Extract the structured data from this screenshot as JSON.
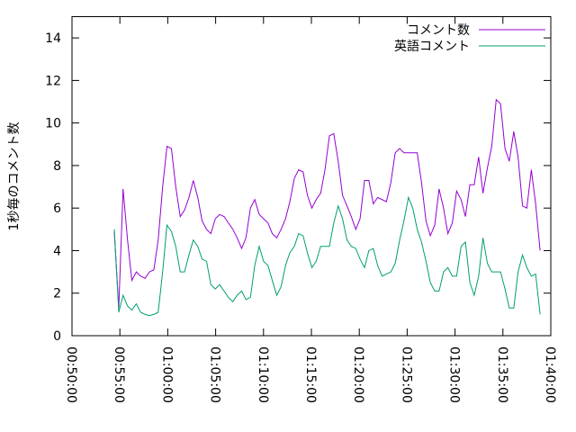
{
  "chart_data": {
    "type": "line",
    "ylabel": "1秒毎のコメント数",
    "x": [
      "00:54:25",
      "00:54:53",
      "00:55:20",
      "00:55:48",
      "00:56:15",
      "00:56:43",
      "00:57:10",
      "00:57:38",
      "00:58:05",
      "00:58:33",
      "00:59:00",
      "00:59:28",
      "00:59:55",
      "01:00:23",
      "01:00:50",
      "01:01:18",
      "01:01:45",
      "01:02:13",
      "01:02:40",
      "01:03:08",
      "01:03:35",
      "01:04:03",
      "01:04:30",
      "01:04:58",
      "01:05:25",
      "01:05:53",
      "01:06:20",
      "01:06:48",
      "01:07:15",
      "01:07:43",
      "01:08:10",
      "01:08:38",
      "01:09:05",
      "01:09:33",
      "01:10:00",
      "01:10:28",
      "01:10:55",
      "01:11:23",
      "01:11:50",
      "01:12:18",
      "01:12:45",
      "01:13:13",
      "01:13:40",
      "01:14:08",
      "01:14:35",
      "01:15:03",
      "01:15:30",
      "01:15:58",
      "01:16:25",
      "01:16:53",
      "01:17:20",
      "01:17:48",
      "01:18:15",
      "01:18:43",
      "01:19:10",
      "01:19:38",
      "01:20:05",
      "01:20:33",
      "01:21:00",
      "01:21:28",
      "01:21:55",
      "01:22:23",
      "01:22:50",
      "01:23:18",
      "01:23:45",
      "01:24:13",
      "01:24:40",
      "01:25:08",
      "01:25:35",
      "01:26:03",
      "01:26:30",
      "01:26:58",
      "01:27:25",
      "01:27:53",
      "01:28:20",
      "01:28:48",
      "01:29:15",
      "01:29:43",
      "01:30:10",
      "01:30:38",
      "01:31:05",
      "01:31:33",
      "01:32:00",
      "01:32:28",
      "01:32:55",
      "01:33:23",
      "01:33:50",
      "01:34:18",
      "01:34:45",
      "01:35:13",
      "01:35:40",
      "01:36:08",
      "01:36:35",
      "01:37:03",
      "01:37:30",
      "01:37:58",
      "01:38:25",
      "01:38:53"
    ],
    "series": [
      {
        "name": "コメント数",
        "color": "#9400d3",
        "values": [
          4.9,
          1.3,
          6.9,
          4.5,
          2.6,
          3.0,
          2.8,
          2.7,
          3.0,
          3.1,
          4.5,
          7.0,
          8.9,
          8.8,
          7.0,
          5.6,
          5.9,
          6.5,
          7.3,
          6.5,
          5.4,
          5.0,
          4.8,
          5.5,
          5.7,
          5.6,
          5.3,
          5.0,
          4.6,
          4.1,
          4.6,
          6.0,
          6.4,
          5.7,
          5.5,
          5.3,
          4.8,
          4.6,
          5.0,
          5.5,
          6.3,
          7.4,
          7.8,
          7.7,
          6.6,
          6.0,
          6.4,
          6.7,
          7.8,
          9.4,
          9.5,
          8.2,
          6.6,
          6.1,
          5.6,
          5.0,
          5.5,
          7.3,
          7.3,
          6.2,
          6.5,
          6.4,
          6.3,
          7.2,
          8.6,
          8.8,
          8.6,
          8.6,
          8.6,
          8.6,
          7.2,
          5.4,
          4.7,
          5.2,
          6.9,
          6.0,
          4.8,
          5.3,
          6.8,
          6.4,
          5.6,
          7.1,
          7.1,
          8.4,
          6.7,
          7.9,
          8.9,
          11.1,
          10.9,
          8.8,
          8.2,
          9.6,
          8.4,
          6.1,
          6.0,
          7.8,
          6.2,
          4.0
        ]
      },
      {
        "name": "英語コメント",
        "color": "#009e73",
        "values": [
          5.0,
          1.1,
          1.9,
          1.4,
          1.2,
          1.5,
          1.1,
          1.0,
          0.95,
          1.0,
          1.1,
          3.0,
          5.2,
          4.9,
          4.2,
          3.0,
          3.0,
          3.8,
          4.5,
          4.2,
          3.6,
          3.5,
          2.4,
          2.2,
          2.4,
          2.1,
          1.8,
          1.6,
          1.9,
          2.1,
          1.7,
          1.8,
          3.3,
          4.2,
          3.5,
          3.3,
          2.6,
          1.9,
          2.3,
          3.3,
          3.9,
          4.2,
          4.8,
          4.7,
          3.9,
          3.2,
          3.5,
          4.2,
          4.2,
          4.2,
          5.3,
          6.1,
          5.5,
          4.5,
          4.2,
          4.1,
          3.6,
          3.2,
          4.0,
          4.1,
          3.3,
          2.8,
          2.9,
          3.0,
          3.4,
          4.5,
          5.4,
          6.5,
          6.0,
          5.0,
          4.4,
          3.5,
          2.5,
          2.1,
          2.1,
          3.0,
          3.2,
          2.8,
          2.8,
          4.2,
          4.4,
          2.5,
          1.9,
          2.8,
          4.6,
          3.4,
          3.0,
          3.0,
          3.0,
          2.2,
          1.3,
          1.3,
          3.0,
          3.8,
          3.2,
          2.8,
          2.9,
          1.0
        ]
      }
    ],
    "xlim": [
      "00:50:00",
      "01:40:00"
    ],
    "xticks": [
      "00:50:00",
      "00:55:00",
      "01:00:00",
      "01:05:00",
      "01:10:00",
      "01:15:00",
      "01:20:00",
      "01:25:00",
      "01:30:00",
      "01:35:00",
      "01:40:00"
    ],
    "ylim": [
      0,
      15
    ],
    "yticks": [
      0,
      2,
      4,
      6,
      8,
      10,
      12,
      14
    ],
    "legend": "top-right"
  }
}
